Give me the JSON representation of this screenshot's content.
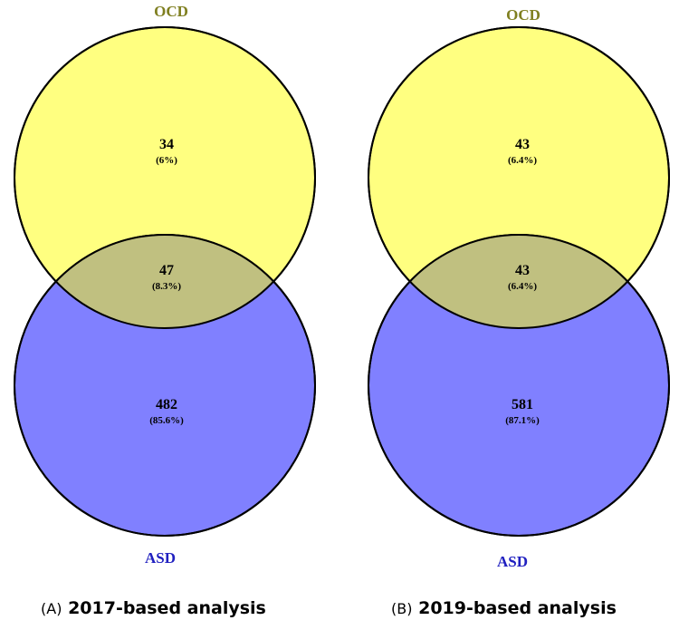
{
  "colors": {
    "ocd_fill": "#ffff80",
    "asd_fill": "#8080ff",
    "overlap_fill": "#c0c080",
    "ocd_label": "#7f7f20",
    "asd_label": "#2020c0",
    "outline": "#000000"
  },
  "panels": [
    {
      "prefix": "(A)",
      "caption": "2017-based analysis",
      "ocd_label": "OCD",
      "asd_label": "ASD",
      "ocd_only": {
        "count": "34",
        "pct": "(6%)"
      },
      "overlap": {
        "count": "47",
        "pct": "(8.3%)"
      },
      "asd_only": {
        "count": "482",
        "pct": "(85.6%)"
      }
    },
    {
      "prefix": "(B)",
      "caption": "2019-based analysis",
      "ocd_label": "OCD",
      "asd_label": "ASD",
      "ocd_only": {
        "count": "43",
        "pct": "(6.4%)"
      },
      "overlap": {
        "count": "43",
        "pct": "(6.4%)"
      },
      "asd_only": {
        "count": "581",
        "pct": "(87.1%)"
      }
    }
  ]
}
